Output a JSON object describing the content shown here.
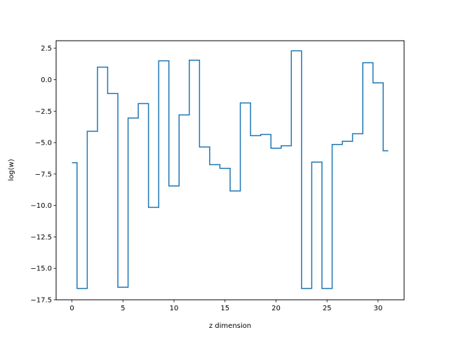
{
  "chart_data": {
    "type": "line",
    "drawstyle": "steps-mid",
    "title": "",
    "xlabel": "z dimension",
    "ylabel": "log(w)",
    "xlim": [
      -1.55,
      32.55
    ],
    "ylim": [
      -17.5,
      3.1
    ],
    "xticks": [
      0,
      5,
      10,
      15,
      20,
      25,
      30
    ],
    "xtick_labels": [
      "0",
      "5",
      "10",
      "15",
      "20",
      "25",
      "30"
    ],
    "yticks": [
      2.5,
      0.0,
      -2.5,
      -5.0,
      -7.5,
      -10.0,
      -12.5,
      -15.0,
      -17.5
    ],
    "ytick_labels": [
      "2.5",
      "0.0",
      "−2.5",
      "−5.0",
      "−7.5",
      "−10.0",
      "−12.5",
      "−15.0",
      "−17.5"
    ],
    "grid": false,
    "legend": "none",
    "line_color": "#1f77b4",
    "series": [
      {
        "x": [
          0,
          1,
          2,
          3,
          4,
          5,
          6,
          7,
          8,
          9,
          10,
          11,
          12,
          13,
          14,
          15,
          16,
          17,
          18,
          19,
          20,
          21,
          22,
          23,
          24,
          25,
          26,
          27,
          28,
          29,
          30,
          31
        ],
        "values": [
          -6.6,
          -16.6,
          -4.1,
          1.0,
          -1.1,
          -16.5,
          -3.05,
          -1.9,
          -10.15,
          1.5,
          -8.45,
          -2.8,
          1.55,
          -5.35,
          -6.75,
          -7.05,
          -8.85,
          -1.85,
          -4.45,
          -4.35,
          -5.45,
          -5.25,
          2.3,
          -16.6,
          -6.55,
          -16.6,
          -5.15,
          -4.9,
          -4.3,
          1.35,
          -0.25,
          -5.65
        ]
      }
    ]
  }
}
